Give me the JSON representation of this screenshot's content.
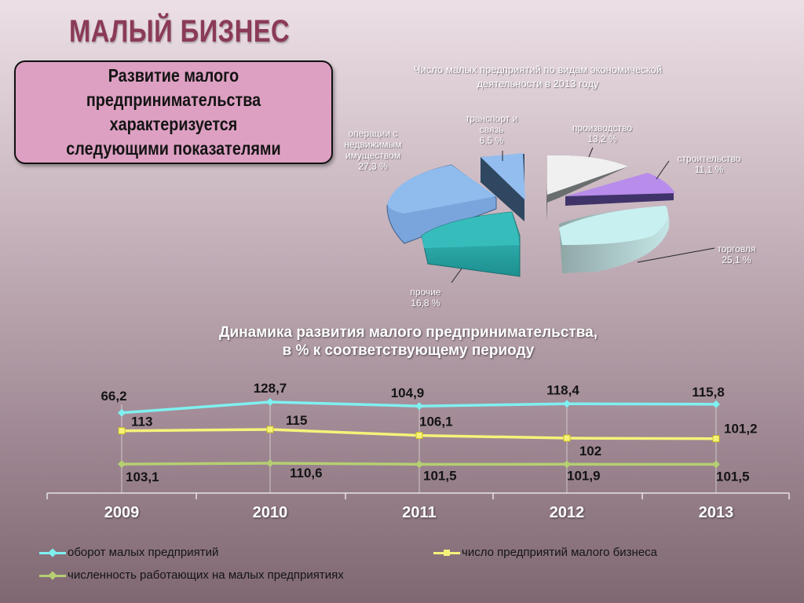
{
  "header": {
    "title": "МАЛЫЙ БИЗНЕС"
  },
  "info_box": {
    "text": "Развитие малого\nпредпринимательства\nхарактеризуется\nследующими показателями"
  },
  "chart_data": [
    {
      "type": "pie",
      "title": "Число малых предприятий по видам экономической\nдеятельности в 2013 году",
      "slices": [
        {
          "label": "транспорт и\nсвязь\n6,5 %",
          "name": "транспорт и связь",
          "value": 6.5,
          "color": "#8ab4e2"
        },
        {
          "label": "производство\n13,2 %",
          "name": "производство",
          "value": 13.2,
          "color": "#eeeeee"
        },
        {
          "label": "строительство\n11,1 %",
          "name": "строительство",
          "value": 11.1,
          "color": "#b28be6"
        },
        {
          "label": "торговля\n25,1 %",
          "name": "торговля",
          "value": 25.1,
          "color": "#c8eeee"
        },
        {
          "label": "прочие\n16,8 %",
          "name": "прочие",
          "value": 16.8,
          "color": "#33b3b3"
        },
        {
          "label": "операции с\nнедвижимым\nимуществом\n27,3 %",
          "name": "операции с недвижимым имуществом",
          "value": 27.3,
          "color": "#8ab4e8"
        }
      ]
    },
    {
      "type": "line",
      "title": "Динамика развития малого предпринимательства,\nв % к соответствующему периоду",
      "categories": [
        "2009",
        "2010",
        "2011",
        "2012",
        "2013"
      ],
      "series": [
        {
          "name": "оборот малых предприятий",
          "values": [
            66.2,
            128.7,
            104.9,
            118.4,
            115.8
          ],
          "labels": [
            "66,2",
            "128,7",
            "104,9",
            "118,4",
            "115,8"
          ],
          "color": "#7ff0f0"
        },
        {
          "name": "число предприятий малого бизнеса",
          "values": [
            113,
            115,
            106.1,
            102,
            101.2
          ],
          "labels": [
            "113",
            "115",
            "106,1",
            "102",
            "101,2"
          ],
          "color": "#f6f27a"
        },
        {
          "name": "численность работающих на малых предприятиях",
          "values": [
            103.1,
            110.6,
            101.5,
            101.9,
            101.5
          ],
          "labels": [
            "103,1",
            "110,6",
            "101,5",
            "101,9",
            "101,5"
          ],
          "color": "#b6cf72"
        }
      ]
    }
  ]
}
